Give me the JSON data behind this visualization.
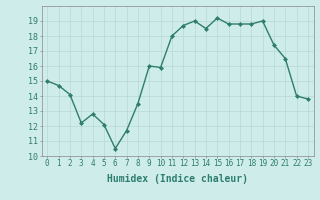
{
  "x": [
    0,
    1,
    2,
    3,
    4,
    5,
    6,
    7,
    8,
    9,
    10,
    11,
    12,
    13,
    14,
    15,
    16,
    17,
    18,
    19,
    20,
    21,
    22,
    23
  ],
  "y": [
    15.0,
    14.7,
    14.1,
    12.2,
    12.8,
    12.1,
    10.5,
    11.7,
    13.5,
    16.0,
    15.9,
    18.0,
    18.7,
    19.0,
    18.5,
    19.2,
    18.8,
    18.8,
    18.8,
    19.0,
    17.4,
    16.5,
    14.0,
    13.8
  ],
  "line_color": "#2e7d6e",
  "marker": "D",
  "marker_size": 2,
  "line_width": 1.0,
  "bg_color": "#ceecea",
  "grid_color": "#b8d8d6",
  "xlabel": "Humidex (Indice chaleur)",
  "xlabel_fontsize": 7,
  "ylim": [
    10,
    20
  ],
  "xlim": [
    -0.5,
    23.5
  ],
  "yticks": [
    10,
    11,
    12,
    13,
    14,
    15,
    16,
    17,
    18,
    19
  ],
  "xticks": [
    0,
    1,
    2,
    3,
    4,
    5,
    6,
    7,
    8,
    9,
    10,
    11,
    12,
    13,
    14,
    15,
    16,
    17,
    18,
    19,
    20,
    21,
    22,
    23
  ],
  "tick_fontsize": 5.5,
  "ytick_fontsize": 6
}
